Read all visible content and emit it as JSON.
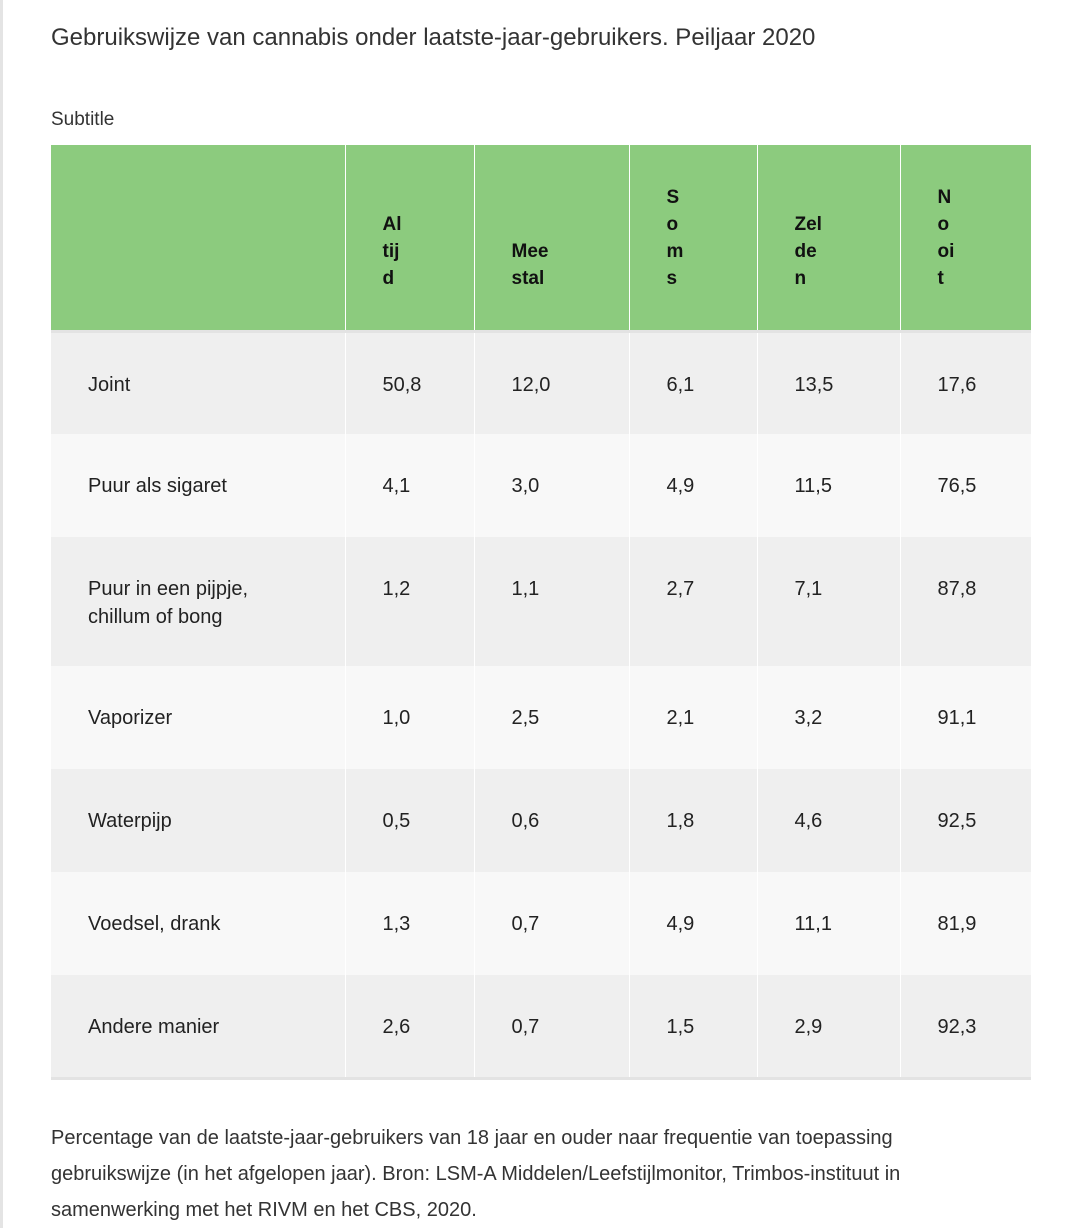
{
  "title": "Gebruikswijze van cannabis onder laatste-jaar-gebruikers. Peiljaar 2020",
  "subtitle": "Subtitle",
  "table": {
    "headers": [
      "",
      "Al\ntij\nd",
      "Mee\nstal",
      "S\no\nm\ns",
      "Zel\nde\nn",
      "N\no\noi\nt"
    ],
    "rows": [
      [
        "Joint",
        "50,8",
        "12,0",
        "6,1",
        "13,5",
        "17,6"
      ],
      [
        "Puur als sigaret",
        "4,1",
        "3,0",
        "4,9",
        "11,5",
        "76,5"
      ],
      [
        "Puur in een pijpje,\nchillum of bong",
        "1,2",
        "1,1",
        "2,7",
        "7,1",
        "87,8"
      ],
      [
        "Vaporizer",
        "1,0",
        "2,5",
        "2,1",
        "3,2",
        "91,1"
      ],
      [
        "Waterpijp",
        "0,5",
        "0,6",
        "1,8",
        "4,6",
        "92,5"
      ],
      [
        "Voedsel, drank",
        "1,3",
        "0,7",
        "4,9",
        "11,1",
        "81,9"
      ],
      [
        "Andere manier",
        "2,6",
        "0,7",
        "1,5",
        "2,9",
        "92,3"
      ]
    ]
  },
  "footnote": "Percentage van de laatste-jaar-gebruikers van 18 jaar en ouder naar frequentie van toepassing gebruikswijze (in het afgelopen jaar). Bron: LSM-A Middelen/Leefstijlmonitor, Trimbos-instituut in samenwerking met het RIVM en het CBS, 2020.",
  "colors": {
    "header_bg": "#8ccb7e",
    "row_odd": "#efefef",
    "row_even": "#f8f8f8"
  }
}
